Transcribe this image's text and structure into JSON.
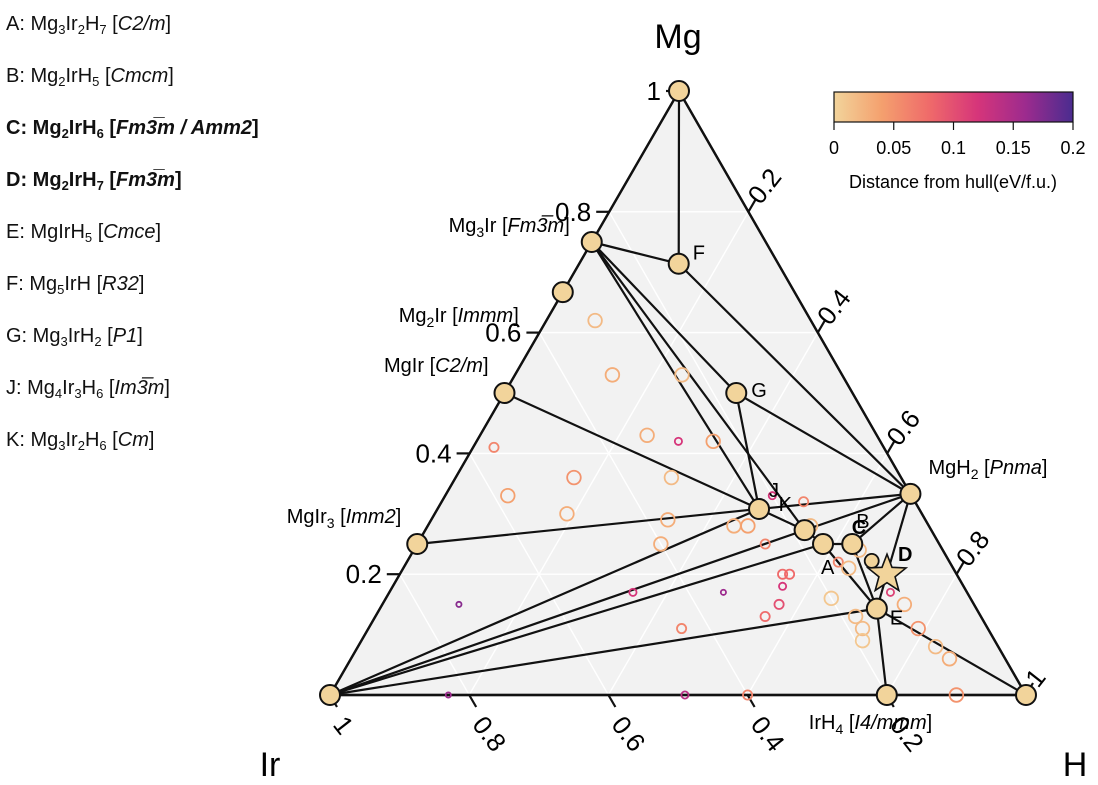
{
  "legend": [
    {
      "key": "A:",
      "formula": [
        [
          "Mg",
          "3"
        ],
        [
          "Ir",
          "2"
        ],
        [
          "H",
          "7"
        ]
      ],
      "space_group": "C2/m",
      "bold": false
    },
    {
      "key": "B:",
      "formula": [
        [
          "Mg",
          "2"
        ],
        [
          "IrH",
          "5"
        ]
      ],
      "space_group": "Cmcm",
      "bold": false
    },
    {
      "key": "C:",
      "formula": [
        [
          "Mg",
          "2"
        ],
        [
          "IrH",
          "6"
        ]
      ],
      "space_group": "Fm3̅m / Amm2",
      "bold": true
    },
    {
      "key": "D:",
      "formula": [
        [
          "Mg",
          "2"
        ],
        [
          "IrH",
          "7"
        ]
      ],
      "space_group": "Fm3̅m",
      "bold": true
    },
    {
      "key": "E:",
      "formula": [
        [
          "MgIrH",
          "5"
        ]
      ],
      "space_group": "Cmce",
      "bold": false
    },
    {
      "key": "F:",
      "formula": [
        [
          "Mg",
          "5"
        ],
        [
          "IrH",
          ""
        ]
      ],
      "space_group": "R32",
      "bold": false
    },
    {
      "key": "G:",
      "formula": [
        [
          "Mg",
          "3"
        ],
        [
          "IrH",
          "2"
        ]
      ],
      "space_group": "P1",
      "bold": false
    },
    {
      "key": "J:",
      "formula": [
        [
          "Mg",
          "4"
        ],
        [
          "Ir",
          "3"
        ],
        [
          "H",
          "6"
        ]
      ],
      "space_group": "Im3̅m",
      "bold": false
    },
    {
      "key": "K:",
      "formula": [
        [
          "Mg",
          "3"
        ],
        [
          "Ir",
          "2"
        ],
        [
          "H",
          "6"
        ]
      ],
      "space_group": "Cm",
      "bold": false
    }
  ],
  "chart_data": {
    "type": "ternary",
    "corners": {
      "top": "Mg",
      "left": "Ir",
      "right": "H"
    },
    "colorbar": {
      "label": "Distance from hull(eV/f.u.)",
      "range": [
        0,
        0.2
      ],
      "ticks": [
        "0",
        "0.05",
        "0.1",
        "0.15",
        "0.2"
      ],
      "colors": [
        "#f2d49b",
        "#f4a06e",
        "#ef6a6a",
        "#d6357a",
        "#9d2b8e",
        "#4a2c8f"
      ]
    },
    "ticks": {
      "mg": [
        {
          "v": 0.2,
          "label": "0.2"
        },
        {
          "v": 0.4,
          "label": "0.4"
        },
        {
          "v": 0.6,
          "label": "0.6"
        },
        {
          "v": 0.8,
          "label": "0.8"
        },
        {
          "v": 1.0,
          "label": "1"
        }
      ],
      "h": [
        {
          "v": 0.2,
          "label": "0.2"
        },
        {
          "v": 0.4,
          "label": "0.4"
        },
        {
          "v": 0.6,
          "label": "0.6"
        },
        {
          "v": 0.8,
          "label": "0.8"
        },
        {
          "v": 1.0,
          "label": "1"
        }
      ],
      "ir": [
        {
          "v": 0.2,
          "label": "0.2"
        },
        {
          "v": 0.4,
          "label": "0.4"
        },
        {
          "v": 0.6,
          "label": "0.6"
        },
        {
          "v": 0.8,
          "label": "0.8"
        },
        {
          "v": 1.0,
          "label": "1"
        }
      ]
    },
    "stable_phases": [
      {
        "id": "Mg",
        "mg": 1.0,
        "h": 0.0
      },
      {
        "id": "Ir",
        "mg": 0.0,
        "h": 0.0
      },
      {
        "id": "H",
        "mg": 0.0,
        "h": 1.0
      },
      {
        "id": "Mg3Ir",
        "mg": 0.75,
        "h": 0.0,
        "label": "Mg3Ir [Fm3̅m]"
      },
      {
        "id": "Mg2Ir",
        "mg": 0.667,
        "h": 0.0,
        "label": "Mg2Ir [Immm]"
      },
      {
        "id": "MgIr",
        "mg": 0.5,
        "h": 0.0,
        "label": "MgIr [C2/m]"
      },
      {
        "id": "MgIr3",
        "mg": 0.25,
        "h": 0.0,
        "label": "MgIr3 [Imm2]"
      },
      {
        "id": "MgH2",
        "mg": 0.333,
        "h": 0.667,
        "label": "MgH2 [Pnma]"
      },
      {
        "id": "IrH4",
        "mg": 0.0,
        "h": 0.8,
        "label": "IrH4 [I4/mmm]"
      },
      {
        "id": "F",
        "mg": 0.714,
        "h": 0.143,
        "label": "F"
      },
      {
        "id": "G",
        "mg": 0.5,
        "h": 0.333,
        "label": "G"
      },
      {
        "id": "J",
        "mg": 0.308,
        "h": 0.462,
        "label": "J"
      },
      {
        "id": "K",
        "mg": 0.273,
        "h": 0.545,
        "label": "K"
      },
      {
        "id": "A",
        "mg": 0.25,
        "h": 0.583,
        "label": "A"
      },
      {
        "id": "B",
        "mg": 0.25,
        "h": 0.625,
        "label": "B"
      },
      {
        "id": "E",
        "mg": 0.143,
        "h": 0.714,
        "label": "E"
      }
    ],
    "highlight": [
      {
        "id": "C",
        "mg": 0.222,
        "h": 0.667,
        "label": "C"
      },
      {
        "id": "D",
        "mg": 0.2,
        "h": 0.7,
        "label": "D"
      }
    ],
    "tie_lines": [
      [
        "Mg",
        "Mg3Ir"
      ],
      [
        "Mg",
        "F"
      ],
      [
        "Mg3Ir",
        "MgIr"
      ],
      [
        "MgIr",
        "MgIr3"
      ],
      [
        "MgIr3",
        "Ir"
      ],
      [
        "Ir",
        "IrH4"
      ],
      [
        "IrH4",
        "H"
      ],
      [
        "H",
        "MgH2"
      ],
      [
        "MgH2",
        "Mg"
      ],
      [
        "Mg3Ir",
        "F"
      ],
      [
        "F",
        "MgH2"
      ],
      [
        "Mg3Ir",
        "G"
      ],
      [
        "Mg3Ir",
        "J"
      ],
      [
        "Mg3Ir",
        "K"
      ],
      [
        "G",
        "MgH2"
      ],
      [
        "G",
        "J"
      ],
      [
        "MgIr",
        "J"
      ],
      [
        "MgIr3",
        "J"
      ],
      [
        "J",
        "Ir"
      ],
      [
        "J",
        "K"
      ],
      [
        "J",
        "MgH2"
      ],
      [
        "K",
        "A"
      ],
      [
        "K",
        "MgH2"
      ],
      [
        "A",
        "B"
      ],
      [
        "B",
        "MgH2"
      ],
      [
        "B",
        "E"
      ],
      [
        "A",
        "E"
      ],
      [
        "Ir",
        "K"
      ],
      [
        "Ir",
        "A"
      ],
      [
        "Ir",
        "E"
      ],
      [
        "E",
        "MgH2"
      ],
      [
        "E",
        "H"
      ],
      [
        "E",
        "IrH4"
      ]
    ],
    "unstable_phases": [
      {
        "mg": 0.25,
        "h": 0.35,
        "d": 0.03
      },
      {
        "mg": 0.62,
        "h": 0.07,
        "d": 0.02
      },
      {
        "mg": 0.53,
        "h": 0.14,
        "d": 0.03
      },
      {
        "mg": 0.41,
        "h": 0.03,
        "d": 0.06
      },
      {
        "mg": 0.33,
        "h": 0.09,
        "d": 0.04
      },
      {
        "mg": 0.53,
        "h": 0.24,
        "d": 0.02
      },
      {
        "mg": 0.43,
        "h": 0.24,
        "d": 0.03
      },
      {
        "mg": 0.36,
        "h": 0.31,
        "d": 0.02
      },
      {
        "mg": 0.36,
        "h": 0.17,
        "d": 0.05
      },
      {
        "mg": 0.3,
        "h": 0.19,
        "d": 0.03
      },
      {
        "mg": 0.29,
        "h": 0.34,
        "d": 0.03
      },
      {
        "mg": 0.42,
        "h": 0.34,
        "d": 0.04
      },
      {
        "mg": 0.42,
        "h": 0.29,
        "d": 0.12
      },
      {
        "mg": 0.28,
        "h": 0.44,
        "d": 0.03
      },
      {
        "mg": 0.28,
        "h": 0.46,
        "d": 0.04
      },
      {
        "mg": 0.33,
        "h": 0.47,
        "d": 0.12
      },
      {
        "mg": 0.32,
        "h": 0.52,
        "d": 0.06
      },
      {
        "mg": 0.25,
        "h": 0.5,
        "d": 0.06
      },
      {
        "mg": 0.28,
        "h": 0.55,
        "d": 0.02
      },
      {
        "mg": 0.2,
        "h": 0.55,
        "d": 0.08
      },
      {
        "mg": 0.2,
        "h": 0.56,
        "d": 0.08
      },
      {
        "mg": 0.18,
        "h": 0.56,
        "d": 0.12
      },
      {
        "mg": 0.22,
        "h": 0.62,
        "d": 0.06
      },
      {
        "mg": 0.24,
        "h": 0.64,
        "d": 0.02
      },
      {
        "mg": 0.21,
        "h": 0.64,
        "d": 0.02
      },
      {
        "mg": 0.16,
        "h": 0.64,
        "d": 0.01
      },
      {
        "mg": 0.13,
        "h": 0.69,
        "d": 0.02
      },
      {
        "mg": 0.17,
        "h": 0.72,
        "d": 0.11
      },
      {
        "mg": 0.15,
        "h": 0.75,
        "d": 0.03
      },
      {
        "mg": 0.11,
        "h": 0.71,
        "d": 0.02
      },
      {
        "mg": 0.09,
        "h": 0.72,
        "d": 0.01
      },
      {
        "mg": 0.11,
        "h": 0.79,
        "d": 0.05
      },
      {
        "mg": 0.08,
        "h": 0.83,
        "d": 0.02
      },
      {
        "mg": 0.06,
        "h": 0.86,
        "d": 0.03
      },
      {
        "mg": 0.15,
        "h": 0.57,
        "d": 0.1
      },
      {
        "mg": 0.17,
        "h": 0.48,
        "d": 0.16
      },
      {
        "mg": 0.13,
        "h": 0.56,
        "d": 0.08
      },
      {
        "mg": 0.17,
        "h": 0.35,
        "d": 0.12
      },
      {
        "mg": 0.11,
        "h": 0.45,
        "d": 0.06
      },
      {
        "mg": 0.15,
        "h": 0.11,
        "d": 0.17
      },
      {
        "mg": 0.0,
        "h": 0.17,
        "d": 0.16
      },
      {
        "mg": 0.0,
        "h": 0.51,
        "d": 0.14
      },
      {
        "mg": 0.0,
        "h": 0.6,
        "d": 0.06
      },
      {
        "mg": 0.0,
        "h": 0.9,
        "d": 0.05
      }
    ]
  }
}
